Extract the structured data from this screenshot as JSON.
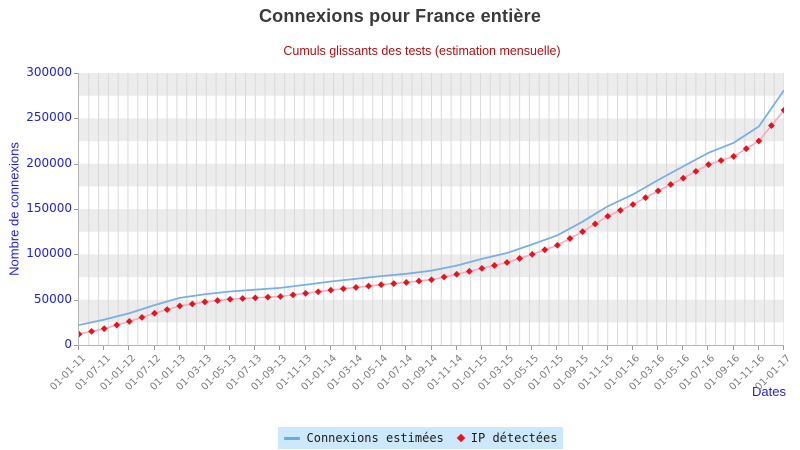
{
  "header": {
    "title": "Connexions pour France entière",
    "subtitle": "Cumuls glissants des tests (estimation mensuelle)"
  },
  "axes": {
    "x_title": "Dates",
    "y_title": "Nombre de connexions"
  },
  "legend": {
    "items": [
      {
        "label": "Connexions estimées",
        "marker": "blue-line"
      },
      {
        "label": "IP détectées",
        "marker": "red-diamond"
      }
    ],
    "background": "#cde8fa"
  },
  "chart_data": {
    "type": "line",
    "title": "Connexions pour France entière",
    "subtitle": "Cumuls glissants des tests (estimation mensuelle)",
    "xlabel": "Dates",
    "ylabel": "Nombre de connexions",
    "ylim": [
      0,
      300000
    ],
    "yticks": [
      0,
      50000,
      100000,
      150000,
      200000,
      250000,
      300000
    ],
    "grid": "vertical monthly gridlines + horizontal alternating bands every 25000",
    "legend_position": "bottom",
    "categories": [
      "01-01-11",
      "01-07-11",
      "01-01-12",
      "01-07-12",
      "01-01-13",
      "01-03-13",
      "01-05-13",
      "01-07-13",
      "01-09-13",
      "01-11-13",
      "01-01-14",
      "01-03-14",
      "01-05-14",
      "01-07-14",
      "01-09-14",
      "01-11-14",
      "01-01-15",
      "01-03-15",
      "01-05-15",
      "01-07-15",
      "01-09-15",
      "01-11-15",
      "01-01-16",
      "01-03-16",
      "01-05-16",
      "01-07-16",
      "01-09-16",
      "01-11-16",
      "01-01-17"
    ],
    "series": [
      {
        "name": "Connexions estimées",
        "style": "line",
        "color": "#79afe5",
        "values": [
          22000,
          28000,
          35000,
          44000,
          52000,
          56000,
          59000,
          61000,
          63000,
          66500,
          70000,
          73000,
          76000,
          78500,
          82000,
          87500,
          95000,
          101500,
          111000,
          121000,
          136000,
          153000,
          166000,
          182000,
          197000,
          212000,
          223000,
          241000,
          281000
        ]
      },
      {
        "name": "IP détectées",
        "style": "line-with-diamond-markers",
        "color": "#e6131c",
        "line_color": "#f7aac2",
        "values": [
          12000,
          18000,
          26000,
          35000,
          43000,
          47500,
          50500,
          52000,
          53500,
          57000,
          60500,
          63500,
          66500,
          69000,
          72000,
          78000,
          84500,
          91000,
          100000,
          110000,
          125000,
          142000,
          155000,
          170000,
          184000,
          199000,
          208000,
          225000,
          259000
        ]
      }
    ],
    "colors": {
      "band_gray": "#ececec",
      "band_white": "#ffffff",
      "vertical_grid": "#d9d9d9",
      "axis_line": "#b5b5b5",
      "ytick_text": "#2323cd",
      "xtick_text": "#7d7d7d",
      "title_text": "#3a3a3a",
      "subtitle_text": "#a61414"
    }
  }
}
